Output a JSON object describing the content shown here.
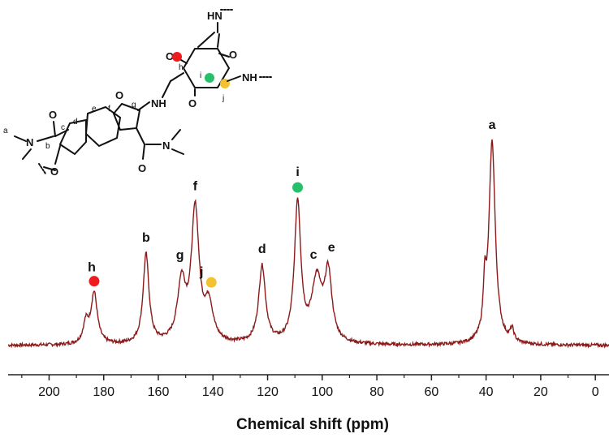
{
  "chart_data": {
    "type": "line",
    "title": "",
    "xlabel": "Chemical shift (ppm)",
    "ylabel": "",
    "xlim": [
      215,
      -5
    ],
    "x_reversed": true,
    "ylim": [
      -0.05,
      1.05
    ],
    "grid": false,
    "xticks": [
      200,
      180,
      160,
      140,
      120,
      100,
      80,
      60,
      40,
      20,
      0
    ],
    "line_color": "#8b1a1a",
    "baseline": 0.0,
    "noise_amplitude": 0.008,
    "series": [
      {
        "peaks": [
          {
            "label": "h",
            "center": 183.5,
            "height": 0.25,
            "width": 1.4,
            "marker_color": "#ee1c1c"
          },
          {
            "label": "",
            "center": 186.5,
            "height": 0.1,
            "width": 1.2
          },
          {
            "label": "b",
            "center": 164.5,
            "height": 0.44,
            "width": 1.3
          },
          {
            "label": "g",
            "center": 151.5,
            "height": 0.29,
            "width": 1.8
          },
          {
            "label": "f",
            "center": 146.5,
            "height": 0.65,
            "width": 1.7
          },
          {
            "label": "j",
            "center": 141.5,
            "height": 0.18,
            "width": 1.8,
            "marker_color": "#f2c230"
          },
          {
            "label": "d",
            "center": 122.0,
            "height": 0.38,
            "width": 1.5
          },
          {
            "label": "i",
            "center": 109.0,
            "height": 0.69,
            "width": 1.4,
            "marker_color": "#25c06a"
          },
          {
            "label": "c",
            "center": 102.0,
            "height": 0.3,
            "width": 2.2
          },
          {
            "label": "e",
            "center": 97.8,
            "height": 0.33,
            "width": 1.6
          },
          {
            "label": "a",
            "center": 37.8,
            "height": 1.0,
            "width": 1.4
          },
          {
            "label": "",
            "center": 40.5,
            "height": 0.22,
            "width": 0.6
          },
          {
            "label": "",
            "center": 30.5,
            "height": 0.06,
            "width": 0.8
          }
        ]
      }
    ]
  },
  "structure": {
    "atom_labels": {
      "nh_top": "HN",
      "nh_bridge": "NH",
      "nh_right": "NH",
      "o": "O",
      "n": "N",
      "letters": {
        "a": "a",
        "b": "b",
        "c": "c",
        "d": "d",
        "e": "e",
        "f": "f",
        "g": "g",
        "h": "h",
        "i": "i",
        "j": "j"
      }
    }
  }
}
